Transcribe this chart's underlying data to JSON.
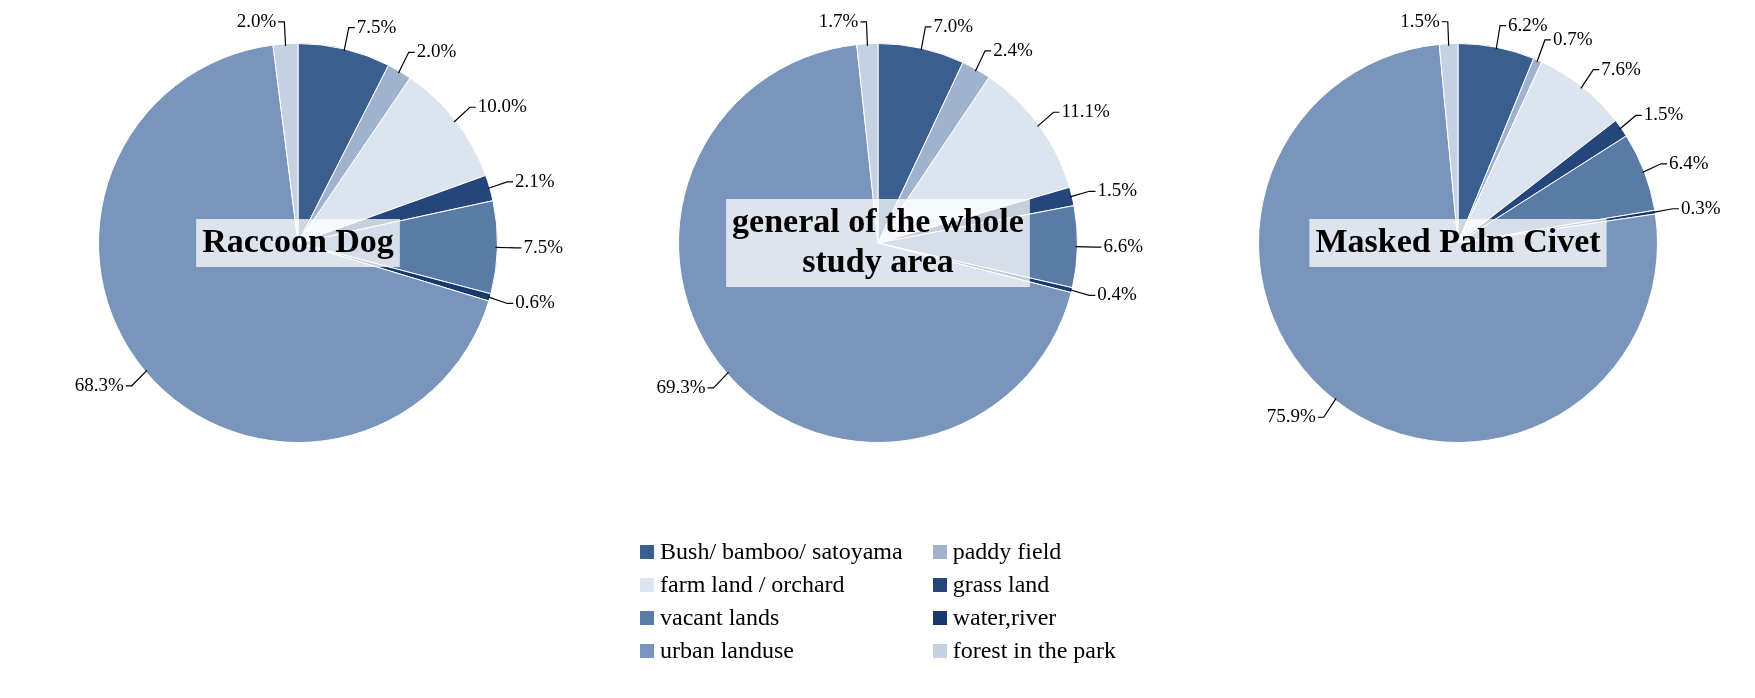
{
  "chart_data": [
    {
      "type": "pie",
      "title": "Raccoon Dog",
      "values": [
        7.5,
        2.0,
        10.0,
        2.1,
        7.5,
        0.6,
        68.3,
        2.0
      ],
      "value_labels": [
        "7.5%",
        "2.0%",
        "10.0%",
        "2.1%",
        "7.5%",
        "0.6%",
        "68.3%",
        "2.0%"
      ],
      "colors": [
        "#3a5f8f",
        "#9fb3cf",
        "#dce4ef",
        "#24467a",
        "#5a7ba6",
        "#173a6e",
        "#7a95bb",
        "#c4d1e3"
      ]
    },
    {
      "type": "pie",
      "title": "general of the whole study area",
      "categories": [
        "Bush/ bamboo/ satoyama",
        "paddy field",
        "farm land / orchard",
        "grass land",
        "vacant lands",
        "water,river",
        "urban landuse",
        "forest in the park"
      ],
      "values": [
        7.0,
        2.4,
        11.1,
        1.5,
        6.6,
        0.4,
        69.3,
        1.7
      ],
      "value_labels": [
        "7.0%",
        "2.4%",
        "11.1%",
        "1.5%",
        "6.6%",
        "0.4%",
        "69.3%",
        "1.7%"
      ],
      "colors": [
        "#3a5f8f",
        "#9fb3cf",
        "#dce4ef",
        "#24467a",
        "#5a7ba6",
        "#173a6e",
        "#7a95bb",
        "#c4d1e3"
      ],
      "legend": "bottom"
    },
    {
      "type": "pie",
      "title": "Masked Palm Civet",
      "values": [
        6.2,
        0.7,
        7.6,
        1.5,
        6.4,
        0.3,
        75.9,
        1.5
      ],
      "value_labels": [
        "6.2%",
        "0.7%",
        "7.6%",
        "1.5%",
        "6.4%",
        "0.3%",
        "75.9%",
        "1.5%"
      ],
      "colors": [
        "#3a5f8f",
        "#9fb3cf",
        "#dce4ef",
        "#24467a",
        "#5a7ba6",
        "#173a6e",
        "#7a95bb",
        "#c4d1e3"
      ]
    }
  ]
}
